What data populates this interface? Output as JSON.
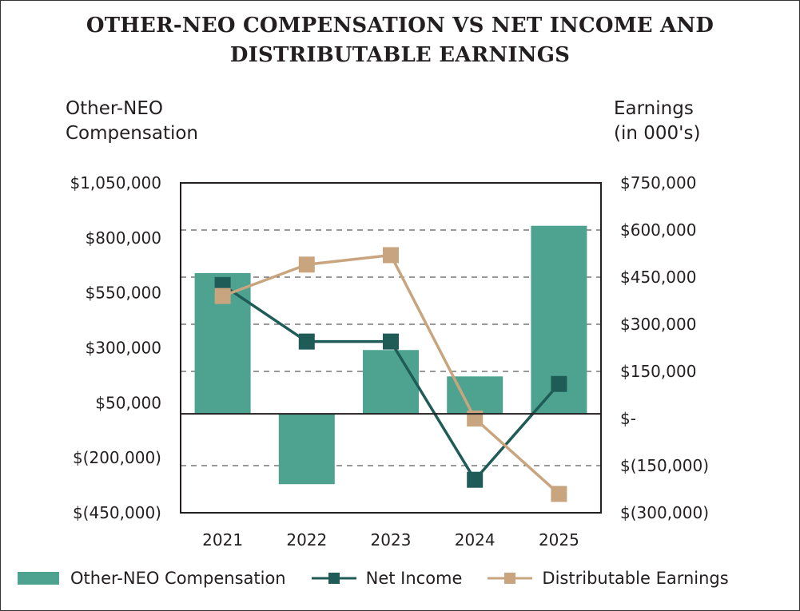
{
  "chart_data": {
    "type": "bar+line",
    "title": [
      "OTHER-NEO COMPENSATION VS NET INCOME AND",
      "DISTRIBUTABLE EARNINGS"
    ],
    "left_axis_title": [
      "Other-NEO",
      "Compensation"
    ],
    "right_axis_title": [
      "Earnings",
      "(in 000's)"
    ],
    "categories": [
      "2021",
      "2022",
      "2023",
      "2024",
      "2025"
    ],
    "left_axis": {
      "ticks": [
        1050000,
        800000,
        550000,
        300000,
        50000,
        -200000,
        -450000
      ],
      "tick_labels": [
        "$1,050,000",
        "$800,000",
        "$550,000",
        "$300,000",
        "$50,000",
        "$(200,000)",
        "$(450,000)"
      ],
      "ylim": [
        -450000,
        1050000
      ]
    },
    "right_axis": {
      "ticks": [
        750000,
        600000,
        450000,
        300000,
        150000,
        0,
        -150000,
        -300000
      ],
      "tick_labels": [
        "$750,000",
        "$600,000",
        "$450,000",
        "$300,000",
        "$150,000",
        "$-",
        "$(150,000)",
        "$(300,000)"
      ],
      "ylim": [
        -300000,
        750000
      ]
    },
    "series": [
      {
        "name": "Other-NEO Compensation",
        "kind": "bar",
        "axis": "left",
        "color": "#4da38f",
        "values": [
          640000,
          -320000,
          290000,
          170000,
          855000
        ]
      },
      {
        "name": "Net Income",
        "kind": "line",
        "axis": "right",
        "color": "#1f5c57",
        "values": [
          425000,
          245000,
          245000,
          -195000,
          110000
        ]
      },
      {
        "name": "Distributable Earnings",
        "kind": "line",
        "axis": "right",
        "color": "#c9a57f",
        "values": [
          390000,
          490000,
          520000,
          0,
          -240000
        ]
      }
    ],
    "grid": "dashed horizontal",
    "legend_position": "bottom"
  }
}
